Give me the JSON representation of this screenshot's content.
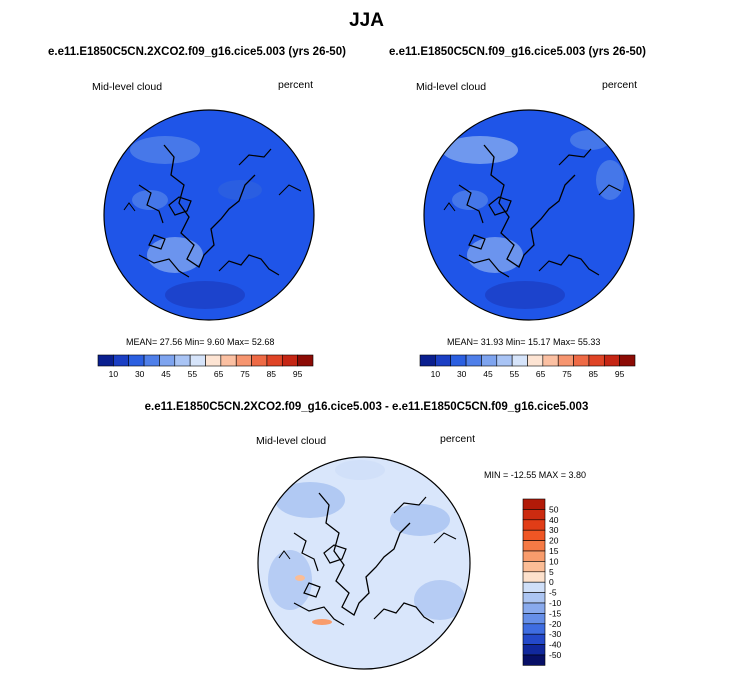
{
  "season": "JJA",
  "colors": {
    "ocean_fill_top": "#1f55e8",
    "ocean_fill_diff": "#d9e6fb",
    "coastline": "#000000"
  },
  "panels": [
    {
      "case": "e.e11.E1850C5CN.2XCO2.f09_g16.cice5.003 (yrs 26-50)",
      "variable": "Mid-level cloud",
      "units": "percent",
      "stats": "MEAN=  27.56  Min=   9.60  Max=  52.68"
    },
    {
      "case": "e.e11.E1850C5CN.f09_g16.cice5.003 (yrs 26-50)",
      "variable": "Mid-level cloud",
      "units": "percent",
      "stats": "MEAN=  31.93  Min=  15.17  Max=  55.33"
    }
  ],
  "colorbar": {
    "labels": [
      "10",
      "30",
      "45",
      "55",
      "65",
      "75",
      "85",
      "95"
    ],
    "colors": [
      "#0a1f8f",
      "#1b3fc4",
      "#2b5fe0",
      "#4f7fe9",
      "#7ea4ef",
      "#a9c4f5",
      "#d6e4fa",
      "#fde4d3",
      "#fbc0a2",
      "#f6956f",
      "#ee6a45",
      "#df4426",
      "#c52614",
      "#8c0b05"
    ]
  },
  "diff": {
    "title": "e.e11.E1850C5CN.2XCO2.f09_g16.cice5.003 - e.e11.E1850C5CN.f09_g16.cice5.003",
    "variable": "Mid-level cloud",
    "units": "percent",
    "stats": "MIN = -12.55 MAX =  3.80",
    "labels": [
      "50",
      "40",
      "30",
      "20",
      "15",
      "10",
      "5",
      "0",
      "-5",
      "-10",
      "-15",
      "-20",
      "-30",
      "-40",
      "-50"
    ],
    "colors": [
      "#b21a08",
      "#cc2b10",
      "#e13d17",
      "#ef5624",
      "#f57a45",
      "#f89c6c",
      "#fbbd96",
      "#fde1cc",
      "#cfdff8",
      "#acc5f2",
      "#89aaed",
      "#668fe8",
      "#3f6de1",
      "#2449c9",
      "#11289c",
      "#070f66"
    ]
  },
  "map_data": {
    "projection": "north-polar-stereographic",
    "region": "Arctic"
  }
}
